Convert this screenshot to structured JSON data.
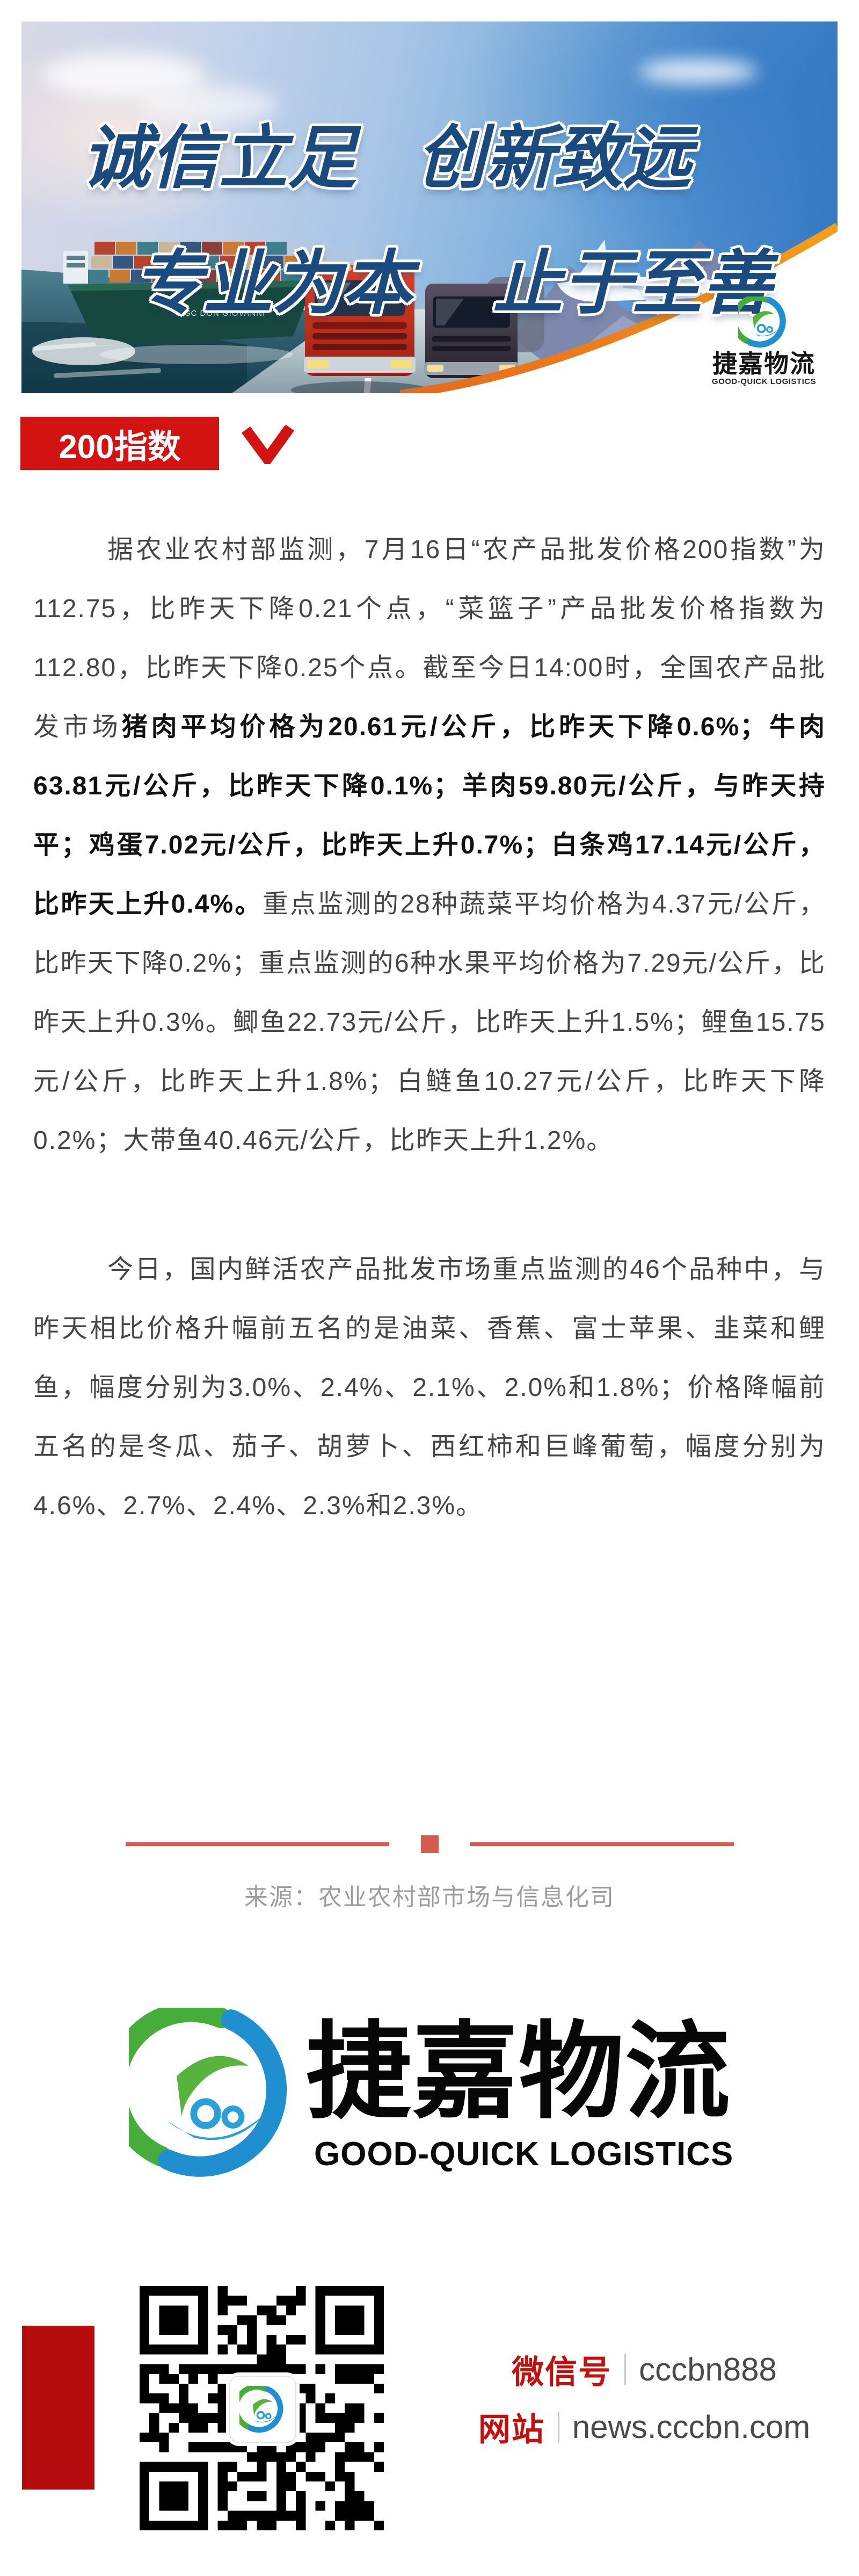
{
  "banner": {
    "slogan1a": "诚信立足",
    "slogan1b": "创新致远",
    "slogan2a": "专业为本",
    "slogan2b": "止于至善",
    "ship_name": "MSC DON GIOVANNI",
    "logo_cn": "捷嘉物流",
    "logo_en": "GOOD-QUICK LOGISTICS"
  },
  "section_tag": {
    "label": "200指数"
  },
  "article": {
    "p1_normal1": "据农业农村部监测，7月16日“农产品批发价格200指数”为112.75，比昨天下降0.21个点，“菜篮子”产品批发价格指数为112.80，比昨天下降0.25个点。截至今日14:00时，全国农产品批发市场",
    "p1_bold": "猪肉平均价格为20.61元/公斤，比昨天下降0.6%；牛肉63.81元/公斤，比昨天下降0.1%；羊肉59.80元/公斤，与昨天持平；鸡蛋7.02元/公斤，比昨天上升0.7%；白条鸡17.14元/公斤，比昨天上升0.4%。",
    "p1_normal2": "重点监测的28种蔬菜平均价格为4.37元/公斤，比昨天下降0.2%；重点监测的6种水果平均价格为7.29元/公斤，比昨天上升0.3%。鲫鱼22.73元/公斤，比昨天上升1.5%；鲤鱼15.75元/公斤，比昨天上升1.8%；白鲢鱼10.27元/公斤，比昨天下降0.2%；大带鱼40.46元/公斤，比昨天上升1.2%。",
    "p2": "今日，国内鲜活农产品批发市场重点监测的46个品种中，与昨天相比价格升幅前五名的是油菜、香蕉、富士苹果、韭菜和鲤鱼，幅度分别为3.0%、2.4%、2.1%、2.0%和1.8%；价格降幅前五名的是冬瓜、茄子、胡萝卜、西红柿和巨峰葡萄，幅度分别为4.6%、2.7%、2.4%、2.3%和2.3%。"
  },
  "source": {
    "label": "来源：农业农村部市场与信息化司"
  },
  "footer_logo": {
    "cn": "捷嘉物流",
    "en": "GOOD-QUICK LOGISTICS"
  },
  "contact": {
    "wechat_label": "微信号",
    "wechat_value": "cccbn888",
    "site_label": "网站",
    "site_value": "news.cccbn.com"
  },
  "colors": {
    "tag_red": "#d31212",
    "divider_red": "#d75b4e",
    "bar_red": "#b50d0d",
    "contact_red": "#c4100d",
    "arc_orange": "#ef8210",
    "slogan_navy": "#1a4a7e"
  }
}
